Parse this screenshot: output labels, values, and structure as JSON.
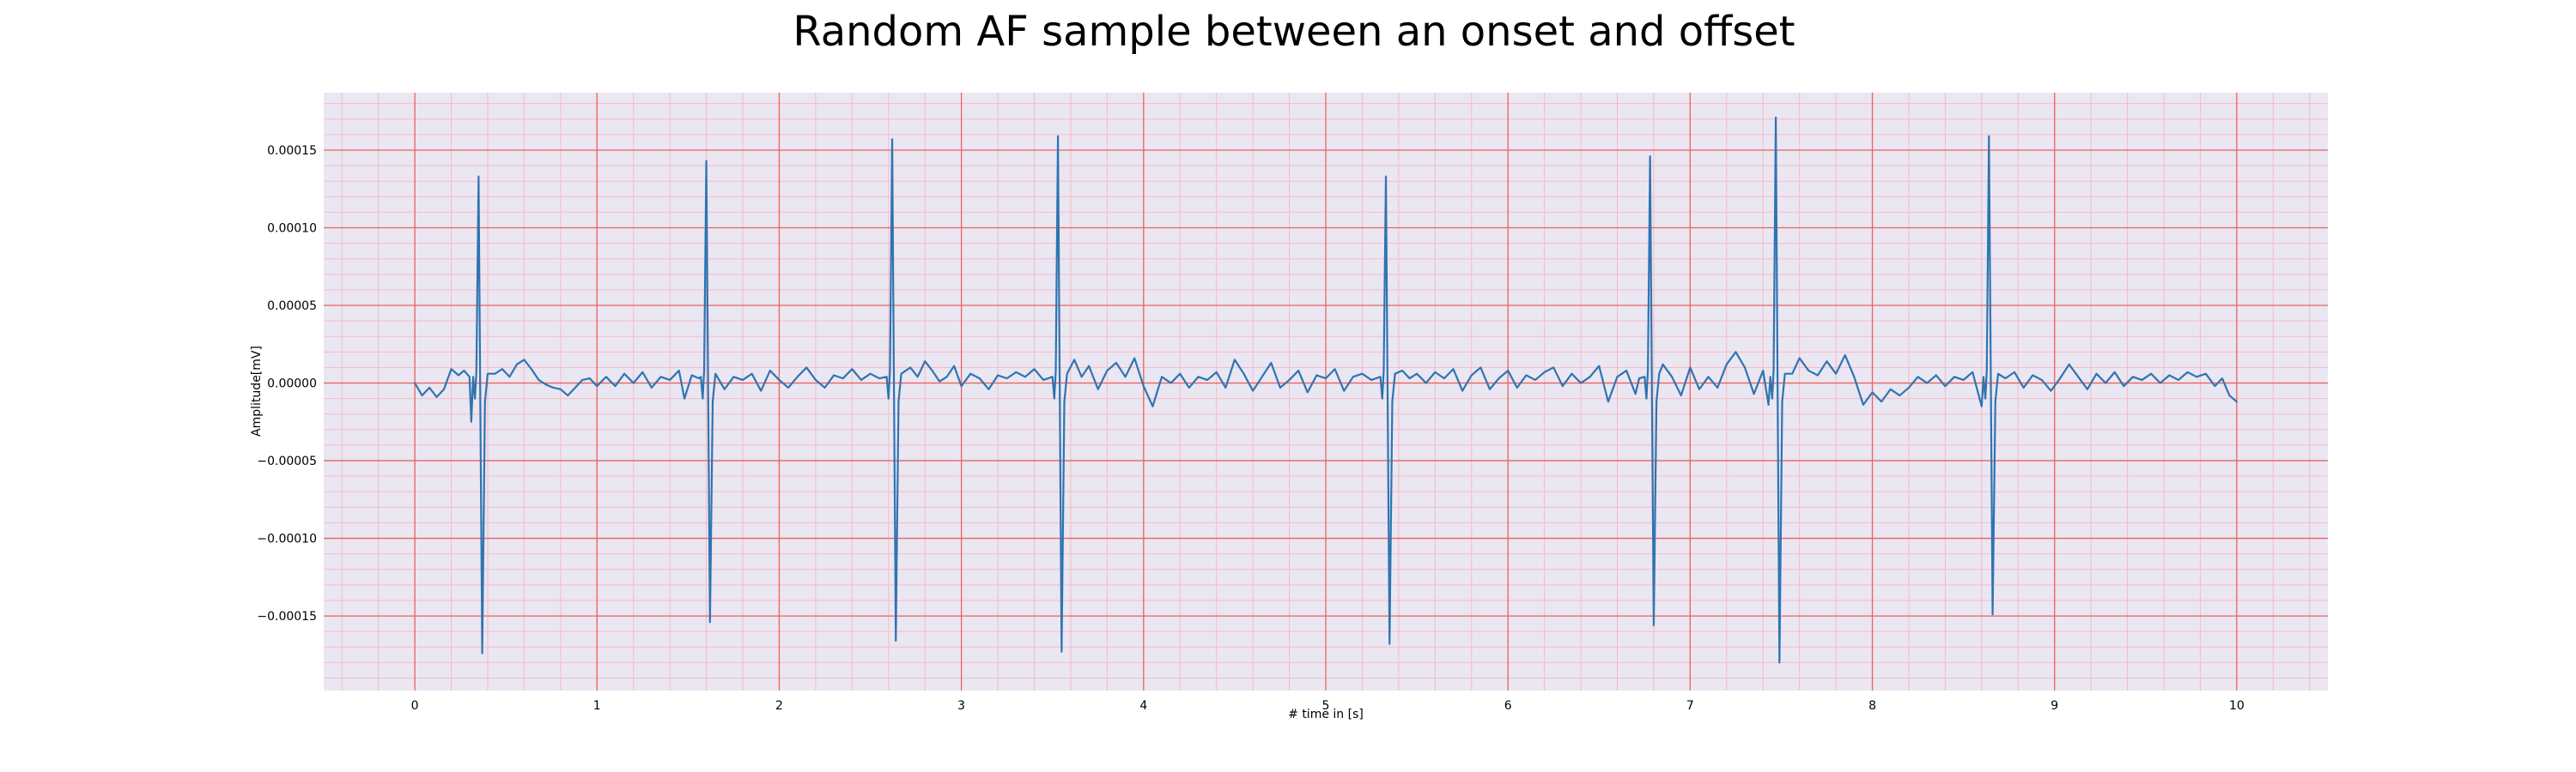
{
  "chart_data": {
    "type": "line",
    "title": "Random AF sample between an onset and offset",
    "xlabel": "# time in [s]",
    "ylabel": "Amplitude[mV]",
    "xlim": [
      -0.5,
      10.5
    ],
    "ylim": [
      -0.000198,
      0.000187
    ],
    "x_ticks": [
      0,
      1,
      2,
      3,
      4,
      5,
      6,
      7,
      8,
      9,
      10
    ],
    "x_tick_labels": [
      "0",
      "1",
      "2",
      "3",
      "4",
      "5",
      "6",
      "7",
      "8",
      "9",
      "10"
    ],
    "y_ticks": [
      -0.00015,
      -0.0001,
      -5e-05,
      0,
      5e-05,
      0.0001,
      0.00015
    ],
    "y_tick_labels": [
      "−0.00015",
      "−0.00010",
      "−0.00005",
      "0.00000",
      "0.00005",
      "0.00010",
      "0.00015"
    ],
    "grid": {
      "major": true,
      "minor": true,
      "major_color": "#e8645e",
      "minor_color": "#f4bcc4"
    },
    "colors": {
      "plot_background": "#eae6f2",
      "line": "#2f74b0"
    },
    "series": [
      {
        "x_start": 0,
        "x_end": 10,
        "baseline_points": [
          [
            0.0,
            0.0
          ],
          [
            0.04,
            -8e-06
          ],
          [
            0.08,
            -3e-06
          ],
          [
            0.12,
            -9e-06
          ],
          [
            0.16,
            -4e-06
          ],
          [
            0.2,
            9e-06
          ],
          [
            0.24,
            5e-06
          ],
          [
            0.27,
            8e-06
          ],
          [
            0.3,
            4e-06
          ],
          [
            0.31,
            -2.5e-05
          ],
          [
            0.33,
            1.2e-05
          ],
          [
            0.36,
            4e-06
          ],
          [
            0.4,
            1.1e-05
          ],
          [
            0.44,
            6e-06
          ],
          [
            0.48,
            9e-06
          ],
          [
            0.52,
            4e-06
          ],
          [
            0.56,
            1.2e-05
          ],
          [
            0.6,
            1.5e-05
          ],
          [
            0.64,
            9e-06
          ],
          [
            0.68,
            2e-06
          ],
          [
            0.72,
            -1e-06
          ],
          [
            0.76,
            -3e-06
          ],
          [
            0.8,
            -4e-06
          ],
          [
            0.84,
            -8e-06
          ],
          [
            0.88,
            -3e-06
          ],
          [
            0.92,
            2e-06
          ],
          [
            0.96,
            3e-06
          ],
          [
            1.0,
            -2e-06
          ],
          [
            1.05,
            4e-06
          ],
          [
            1.1,
            -2e-06
          ],
          [
            1.15,
            6e-06
          ],
          [
            1.2,
            0.0
          ],
          [
            1.25,
            7e-06
          ],
          [
            1.3,
            -3e-06
          ],
          [
            1.35,
            4e-06
          ],
          [
            1.4,
            2e-06
          ],
          [
            1.45,
            8e-06
          ],
          [
            1.48,
            -1e-05
          ],
          [
            1.52,
            5e-06
          ],
          [
            1.56,
            3e-06
          ],
          [
            1.65,
            6e-06
          ],
          [
            1.7,
            -4e-06
          ],
          [
            1.75,
            4e-06
          ],
          [
            1.8,
            2e-06
          ],
          [
            1.85,
            6e-06
          ],
          [
            1.9,
            -5e-06
          ],
          [
            1.95,
            8e-06
          ],
          [
            2.0,
            2e-06
          ],
          [
            2.05,
            -3e-06
          ],
          [
            2.1,
            4e-06
          ],
          [
            2.15,
            1e-05
          ],
          [
            2.2,
            2e-06
          ],
          [
            2.25,
            -3e-06
          ],
          [
            2.3,
            5e-06
          ],
          [
            2.35,
            3e-06
          ],
          [
            2.4,
            9e-06
          ],
          [
            2.45,
            2e-06
          ],
          [
            2.5,
            6e-06
          ],
          [
            2.55,
            3e-06
          ],
          [
            2.59,
            -1.8e-05
          ],
          [
            2.68,
            1.7e-05
          ],
          [
            2.72,
            1e-05
          ],
          [
            2.76,
            4e-06
          ],
          [
            2.8,
            1.4e-05
          ],
          [
            2.84,
            8e-06
          ],
          [
            2.88,
            1e-06
          ],
          [
            2.92,
            4e-06
          ],
          [
            2.96,
            1.1e-05
          ],
          [
            3.0,
            -2e-06
          ],
          [
            3.05,
            6e-06
          ],
          [
            3.1,
            3e-06
          ],
          [
            3.15,
            -4e-06
          ],
          [
            3.2,
            5e-06
          ],
          [
            3.25,
            3e-06
          ],
          [
            3.3,
            7e-06
          ],
          [
            3.35,
            4e-06
          ],
          [
            3.4,
            9e-06
          ],
          [
            3.45,
            2e-06
          ],
          [
            3.5,
            8e-06
          ],
          [
            3.57,
            1e-05
          ],
          [
            3.62,
            1.5e-05
          ],
          [
            3.66,
            4e-06
          ],
          [
            3.7,
            1.1e-05
          ],
          [
            3.75,
            -4e-06
          ],
          [
            3.8,
            8e-06
          ],
          [
            3.85,
            1.3e-05
          ],
          [
            3.9,
            4e-06
          ],
          [
            3.95,
            1.6e-05
          ],
          [
            4.0,
            -2e-06
          ],
          [
            4.05,
            -1.5e-05
          ],
          [
            4.1,
            4e-06
          ],
          [
            4.15,
            0.0
          ],
          [
            4.2,
            6e-06
          ],
          [
            4.25,
            -3e-06
          ],
          [
            4.3,
            4e-06
          ],
          [
            4.35,
            2e-06
          ],
          [
            4.4,
            7e-06
          ],
          [
            4.45,
            -3e-06
          ],
          [
            4.5,
            1.5e-05
          ],
          [
            4.55,
            6e-06
          ],
          [
            4.6,
            -5e-06
          ],
          [
            4.65,
            4e-06
          ],
          [
            4.7,
            1.3e-05
          ],
          [
            4.75,
            -3e-06
          ],
          [
            4.8,
            2e-06
          ],
          [
            4.85,
            8e-06
          ],
          [
            4.9,
            -6e-06
          ],
          [
            4.95,
            5e-06
          ],
          [
            5.0,
            3e-06
          ],
          [
            5.05,
            9e-06
          ],
          [
            5.1,
            -5e-06
          ],
          [
            5.15,
            4e-06
          ],
          [
            5.2,
            6e-06
          ],
          [
            5.25,
            2e-06
          ],
          [
            5.3,
            7e-06
          ],
          [
            5.38,
            5e-06
          ],
          [
            5.42,
            8e-06
          ],
          [
            5.46,
            3e-06
          ],
          [
            5.5,
            6e-06
          ],
          [
            5.55,
            0.0
          ],
          [
            5.6,
            7e-06
          ],
          [
            5.65,
            3e-06
          ],
          [
            5.7,
            9e-06
          ],
          [
            5.75,
            -5e-06
          ],
          [
            5.8,
            5e-06
          ],
          [
            5.85,
            1e-05
          ],
          [
            5.9,
            -4e-06
          ],
          [
            5.95,
            3e-06
          ],
          [
            6.0,
            8e-06
          ],
          [
            6.05,
            -3e-06
          ],
          [
            6.1,
            5e-06
          ],
          [
            6.15,
            2e-06
          ],
          [
            6.2,
            7e-06
          ],
          [
            6.25,
            1e-05
          ],
          [
            6.3,
            -2e-06
          ],
          [
            6.35,
            6e-06
          ],
          [
            6.4,
            0.0
          ],
          [
            6.45,
            4e-06
          ],
          [
            6.5,
            1.1e-05
          ],
          [
            6.55,
            -1.2e-05
          ],
          [
            6.6,
            4e-06
          ],
          [
            6.65,
            8e-06
          ],
          [
            6.7,
            -7e-06
          ],
          [
            6.72,
            3e-06
          ],
          [
            6.8,
            6e-06
          ],
          [
            6.85,
            1.2e-05
          ],
          [
            6.9,
            4e-06
          ],
          [
            6.95,
            -8e-06
          ],
          [
            7.0,
            1e-05
          ],
          [
            7.05,
            -4e-06
          ],
          [
            7.1,
            4e-06
          ],
          [
            7.15,
            -3e-06
          ],
          [
            7.2,
            1.2e-05
          ],
          [
            7.25,
            2e-05
          ],
          [
            7.3,
            1e-05
          ],
          [
            7.35,
            -7e-06
          ],
          [
            7.4,
            8e-06
          ],
          [
            7.43,
            -1.4e-05
          ],
          [
            7.52,
            1.2e-05
          ],
          [
            7.56,
            6e-06
          ],
          [
            7.6,
            1.6e-05
          ],
          [
            7.65,
            8e-06
          ],
          [
            7.7,
            5e-06
          ],
          [
            7.75,
            1.4e-05
          ],
          [
            7.8,
            6e-06
          ],
          [
            7.85,
            1.8e-05
          ],
          [
            7.9,
            4e-06
          ],
          [
            7.95,
            -1.4e-05
          ],
          [
            8.0,
            -6e-06
          ],
          [
            8.05,
            -1.2e-05
          ],
          [
            8.1,
            -4e-06
          ],
          [
            8.15,
            -8e-06
          ],
          [
            8.2,
            -3e-06
          ],
          [
            8.25,
            4e-06
          ],
          [
            8.3,
            0.0
          ],
          [
            8.35,
            5e-06
          ],
          [
            8.4,
            -2e-06
          ],
          [
            8.45,
            4e-06
          ],
          [
            8.5,
            2e-06
          ],
          [
            8.55,
            7e-06
          ],
          [
            8.6,
            -1.5e-05
          ],
          [
            8.69,
            4e-06
          ],
          [
            8.73,
            3e-06
          ],
          [
            8.78,
            7e-06
          ],
          [
            8.83,
            -3e-06
          ],
          [
            8.88,
            5e-06
          ],
          [
            8.93,
            2e-06
          ],
          [
            8.98,
            -5e-06
          ],
          [
            9.03,
            3e-06
          ],
          [
            9.08,
            1.2e-05
          ],
          [
            9.13,
            4e-06
          ],
          [
            9.18,
            -4e-06
          ],
          [
            9.23,
            6e-06
          ],
          [
            9.28,
            0.0
          ],
          [
            9.33,
            7e-06
          ],
          [
            9.38,
            -2e-06
          ],
          [
            9.43,
            4e-06
          ],
          [
            9.48,
            2e-06
          ],
          [
            9.53,
            6e-06
          ],
          [
            9.58,
            0.0
          ],
          [
            9.63,
            5e-06
          ],
          [
            9.68,
            2e-06
          ],
          [
            9.73,
            7e-06
          ],
          [
            9.78,
            4e-06
          ],
          [
            9.83,
            6e-06
          ],
          [
            9.88,
            -2e-06
          ],
          [
            9.92,
            3e-06
          ],
          [
            9.96,
            -8e-06
          ],
          [
            10.0,
            -1.2e-05
          ]
        ],
        "spikes": [
          {
            "t": 0.35,
            "peak": 0.000133,
            "trough": -0.000174
          },
          {
            "t": 1.6,
            "peak": 0.000143,
            "trough": -0.000154
          },
          {
            "t": 2.62,
            "peak": 0.000157,
            "trough": -0.000166
          },
          {
            "t": 3.53,
            "peak": 0.000159,
            "trough": -0.000173
          },
          {
            "t": 5.33,
            "peak": 0.000133,
            "trough": -0.000168
          },
          {
            "t": 6.78,
            "peak": 0.000146,
            "trough": -0.000156
          },
          {
            "t": 7.47,
            "peak": 0.000171,
            "trough": -0.00018
          },
          {
            "t": 8.64,
            "peak": 0.000159,
            "trough": -0.000149
          }
        ]
      }
    ]
  }
}
